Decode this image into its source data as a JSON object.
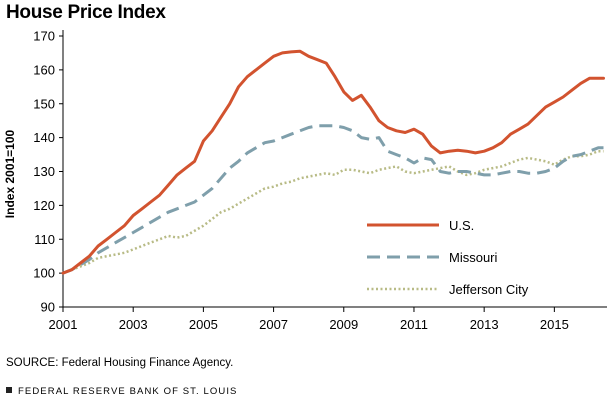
{
  "header": {
    "title": "House Price Index"
  },
  "source": "SOURCE: Federal Housing Finance Agency.",
  "footer": "FEDERAL RESERVE BANK OF ST. LOUIS",
  "chart_data": {
    "type": "line",
    "title": "House Price Index",
    "ylabel": "Index 2001=100",
    "xlabel": "",
    "xlim": [
      2001,
      2016.5
    ],
    "ylim": [
      90,
      170
    ],
    "xticks": [
      2001,
      2003,
      2005,
      2007,
      2009,
      2011,
      2013,
      2015
    ],
    "yticks": [
      90,
      100,
      110,
      120,
      130,
      140,
      150,
      160,
      170
    ],
    "grid": false,
    "legend_position": "lower-right",
    "series": [
      {
        "name": "U.S.",
        "color": "#d2532f",
        "style": "solid",
        "x": [
          2001,
          2001.25,
          2001.5,
          2001.75,
          2002,
          2002.25,
          2002.5,
          2002.75,
          2003,
          2003.25,
          2003.5,
          2003.75,
          2004,
          2004.25,
          2004.5,
          2004.75,
          2005,
          2005.25,
          2005.5,
          2005.75,
          2006,
          2006.25,
          2006.5,
          2006.75,
          2007,
          2007.25,
          2007.5,
          2007.75,
          2008,
          2008.25,
          2008.5,
          2008.75,
          2009,
          2009.25,
          2009.5,
          2009.75,
          2010,
          2010.25,
          2010.5,
          2010.75,
          2011,
          2011.25,
          2011.5,
          2011.75,
          2012,
          2012.25,
          2012.5,
          2012.75,
          2013,
          2013.25,
          2013.5,
          2013.75,
          2014,
          2014.25,
          2014.5,
          2014.75,
          2015,
          2015.25,
          2015.5,
          2015.75,
          2016,
          2016.25,
          2016.4
        ],
        "values": [
          100,
          101,
          103,
          105,
          108,
          110,
          112,
          114,
          117,
          119,
          121,
          123,
          126,
          129,
          131,
          133,
          139,
          142,
          146,
          150,
          155,
          158,
          160,
          162,
          164,
          165,
          165.3,
          165.5,
          164,
          163,
          162,
          158,
          153.5,
          151,
          152.5,
          149,
          145,
          143,
          142,
          141.5,
          142.5,
          141,
          137.5,
          135.5,
          136,
          136.3,
          136,
          135.5,
          136,
          137,
          138.5,
          141,
          142.5,
          144,
          146.5,
          149,
          150.5,
          152,
          154,
          156,
          157.5,
          157.5,
          157.5
        ]
      },
      {
        "name": "Missouri",
        "color": "#7f9fab",
        "style": "dashed",
        "x": [
          2001,
          2001.25,
          2001.5,
          2001.75,
          2002,
          2002.25,
          2002.5,
          2002.75,
          2003,
          2003.25,
          2003.5,
          2003.75,
          2004,
          2004.25,
          2004.5,
          2004.75,
          2005,
          2005.25,
          2005.5,
          2005.75,
          2006,
          2006.25,
          2006.5,
          2006.75,
          2007,
          2007.25,
          2007.5,
          2007.75,
          2008,
          2008.25,
          2008.5,
          2008.75,
          2009,
          2009.25,
          2009.5,
          2009.75,
          2010,
          2010.25,
          2010.5,
          2010.75,
          2011,
          2011.25,
          2011.5,
          2011.75,
          2012,
          2012.25,
          2012.5,
          2012.75,
          2013,
          2013.25,
          2013.5,
          2013.75,
          2014,
          2014.25,
          2014.5,
          2014.75,
          2015,
          2015.25,
          2015.5,
          2015.75,
          2016,
          2016.25,
          2016.4
        ],
        "values": [
          100,
          101,
          102.5,
          104,
          106,
          107.5,
          109,
          110.5,
          112,
          113.5,
          115,
          116.5,
          118,
          119,
          120,
          121,
          123,
          125,
          128,
          131,
          133,
          135.5,
          137,
          138.5,
          139,
          140,
          141,
          142,
          143,
          143.5,
          143.5,
          143.5,
          143,
          142,
          140,
          139.5,
          140,
          136,
          135,
          134,
          132.5,
          134,
          133.5,
          130,
          129.5,
          130,
          130,
          129.5,
          129,
          129,
          129.5,
          130,
          130,
          129.5,
          129.5,
          130,
          131,
          133,
          134.5,
          135,
          136,
          137,
          137
        ]
      },
      {
        "name": "Jefferson City",
        "color": "#b8bb86",
        "style": "dotted",
        "x": [
          2001,
          2001.25,
          2001.5,
          2001.75,
          2002,
          2002.25,
          2002.5,
          2002.75,
          2003,
          2003.25,
          2003.5,
          2003.75,
          2004,
          2004.25,
          2004.5,
          2004.75,
          2005,
          2005.25,
          2005.5,
          2005.75,
          2006,
          2006.25,
          2006.5,
          2006.75,
          2007,
          2007.25,
          2007.5,
          2007.75,
          2008,
          2008.25,
          2008.5,
          2008.75,
          2009,
          2009.25,
          2009.5,
          2009.75,
          2010,
          2010.25,
          2010.5,
          2010.75,
          2011,
          2011.25,
          2011.5,
          2011.75,
          2012,
          2012.25,
          2012.5,
          2012.75,
          2013,
          2013.25,
          2013.5,
          2013.75,
          2014,
          2014.25,
          2014.5,
          2014.75,
          2015,
          2015.25,
          2015.5,
          2015.75,
          2016,
          2016.25,
          2016.4
        ],
        "values": [
          100,
          101,
          102,
          103,
          104.5,
          105,
          105.5,
          106,
          107,
          108,
          109,
          110,
          111,
          110.5,
          111,
          112.5,
          114,
          116,
          118,
          119,
          120.5,
          122,
          123.5,
          125,
          125.5,
          126.5,
          127,
          128,
          128.5,
          129,
          129.5,
          129,
          130.5,
          130.5,
          130,
          129.5,
          130.5,
          131,
          131.5,
          130,
          129.5,
          130,
          130.5,
          131,
          131.5,
          130,
          129,
          129.5,
          130.5,
          131,
          131.5,
          132.5,
          133.5,
          134,
          133.5,
          133,
          132,
          133.5,
          134.5,
          134.5,
          135,
          136,
          136
        ]
      }
    ]
  }
}
